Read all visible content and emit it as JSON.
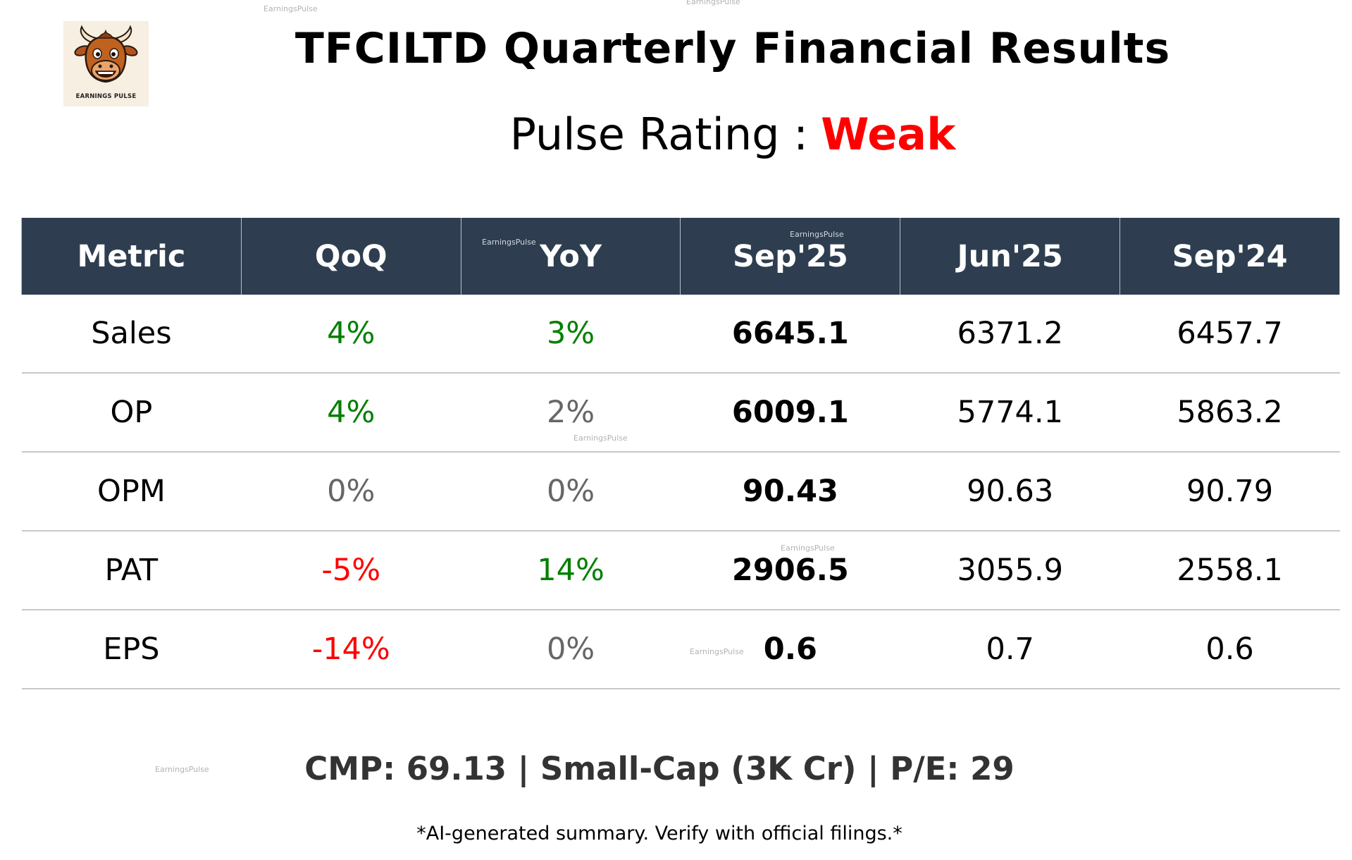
{
  "header": {
    "logo_text": "EARNINGS PULSE",
    "title": "TFCILTD Quarterly Financial Results",
    "rating_label": "Pulse Rating :",
    "rating_value": "Weak",
    "rating_color": "#ff0000"
  },
  "table": {
    "columns": [
      "Metric",
      "QoQ",
      "YoY",
      "Sep'25",
      "Jun'25",
      "Sep'24"
    ],
    "rows": [
      {
        "metric": "Sales",
        "qoq": "4%",
        "yoy": "3%",
        "sep25": "6645.1",
        "jun25": "6371.2",
        "sep24": "6457.7"
      },
      {
        "metric": "OP",
        "qoq": "4%",
        "yoy": "2%",
        "sep25": "6009.1",
        "jun25": "5774.1",
        "sep24": "5863.2"
      },
      {
        "metric": "OPM",
        "qoq": "0%",
        "yoy": "0%",
        "sep25": "90.43",
        "jun25": "90.63",
        "sep24": "90.79"
      },
      {
        "metric": "PAT",
        "qoq": "-5%",
        "yoy": "14%",
        "sep25": "2906.5",
        "jun25": "3055.9",
        "sep24": "2558.1"
      },
      {
        "metric": "EPS",
        "qoq": "-14%",
        "yoy": "0%",
        "sep25": "0.6",
        "jun25": "0.7",
        "sep24": "0.6"
      }
    ]
  },
  "colors": {
    "header_bg": "#2e3e50",
    "positive": "#008000",
    "negative": "#ff0000",
    "neutral": "#666666"
  },
  "footer": {
    "summary": "CMP: 69.13 | Small-Cap (3K Cr) | P/E: 29",
    "disclaimer": "*AI-generated summary. Verify with official filings.*"
  },
  "watermark": "EarningsPulse"
}
